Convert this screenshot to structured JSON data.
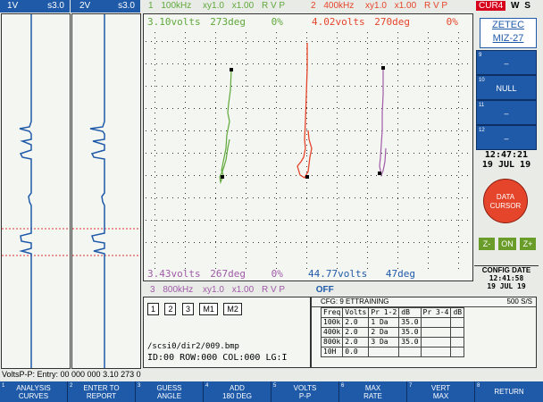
{
  "strip1": {
    "label": "1V",
    "scale": "s3.0"
  },
  "strip2": {
    "label": "2V",
    "scale": "s3.0"
  },
  "ch1": {
    "num": "1",
    "freq": "100kHz",
    "xy": "xy1.0",
    "gain": "x1.00",
    "rvp": "R V P"
  },
  "ch2": {
    "num": "2",
    "freq": "400kHz",
    "xy": "xy1.0",
    "gain": "x1.00",
    "rvp": "R V P"
  },
  "cur": {
    "tag": "CUR4",
    "w": "W",
    "s": "S"
  },
  "readout_top": {
    "green": {
      "volts": "3.10volts",
      "deg": "273deg",
      "pct": "0%"
    },
    "red": {
      "volts": "4.02volts",
      "deg": "270deg",
      "pct": "0%"
    }
  },
  "readout_bottom": {
    "purple": {
      "volts": "3.43volts",
      "deg": "267deg",
      "pct": "0%"
    },
    "blue": {
      "volts": "44.77volts",
      "deg": "47deg"
    }
  },
  "ch3": {
    "num": "3",
    "freq": "800kHz",
    "xy": "xy1.0",
    "gain": "x1.00",
    "rvp": "R V P",
    "status": "OFF"
  },
  "logo": {
    "line1": "ZETEC",
    "line2": "MIZ-27"
  },
  "side_buttons": [
    {
      "num": "9",
      "label": "–"
    },
    {
      "num": "10",
      "label": "NULL"
    },
    {
      "num": "11",
      "label": "–"
    },
    {
      "num": "12",
      "label": "–"
    }
  ],
  "clock": {
    "time": "12:47:21",
    "date": "19 JUL 19"
  },
  "data_cursor": {
    "line1": "DATA",
    "line2": "CURSOR"
  },
  "zoom": {
    "minus": "Z-",
    "on": "ON",
    "plus": "Z+"
  },
  "config": {
    "title": "CONFIG DATE",
    "time": "12:41:58",
    "date": "19 JUL 19"
  },
  "plot_buttons": [
    "1",
    "2",
    "3",
    "M1",
    "M2"
  ],
  "file": {
    "path": "/scsi0/dir2/009.bmp",
    "info": "ID:00 ROW:000 COL:000  LG:I"
  },
  "cfg": {
    "name": "CFG: 9 ETTRAINING",
    "rate": "500 S/S"
  },
  "table": {
    "headers": [
      "Freq",
      "Volts",
      "Pr 1-2",
      "dB",
      "Pr 3-4",
      "dB"
    ],
    "rows": [
      [
        "100k",
        "2.0",
        "1 Da",
        "35.0",
        "",
        ""
      ],
      [
        "400k",
        "2.0",
        "2 Da",
        "35.0",
        "",
        ""
      ],
      [
        "800k",
        "2.0",
        "3 Da",
        "35.0",
        "",
        ""
      ],
      [
        "10H",
        "0.0",
        "",
        "",
        "",
        ""
      ]
    ]
  },
  "status": "VoltsP-P: Entry: 00 000 000  3.10 273  0",
  "fkeys": [
    {
      "num": "1",
      "l1": "ANALYSIS",
      "l2": "CURVES"
    },
    {
      "num": "2",
      "l1": "ENTER TO",
      "l2": "REPORT"
    },
    {
      "num": "3",
      "l1": "GUESS",
      "l2": "ANGLE"
    },
    {
      "num": "4",
      "l1": "ADD",
      "l2": "180 DEG"
    },
    {
      "num": "5",
      "l1": "VOLTS",
      "l2": "P-P"
    },
    {
      "num": "6",
      "l1": "MAX",
      "l2": "RATE"
    },
    {
      "num": "7",
      "l1": "VERT",
      "l2": "MAX"
    },
    {
      "num": "8",
      "l1": "RETURN",
      "l2": ""
    }
  ],
  "colors": {
    "blue": "#1f5aa9",
    "green": "#5fa83a",
    "red": "#e5452a",
    "purple": "#a05aa8",
    "cur": "#d6001c"
  }
}
